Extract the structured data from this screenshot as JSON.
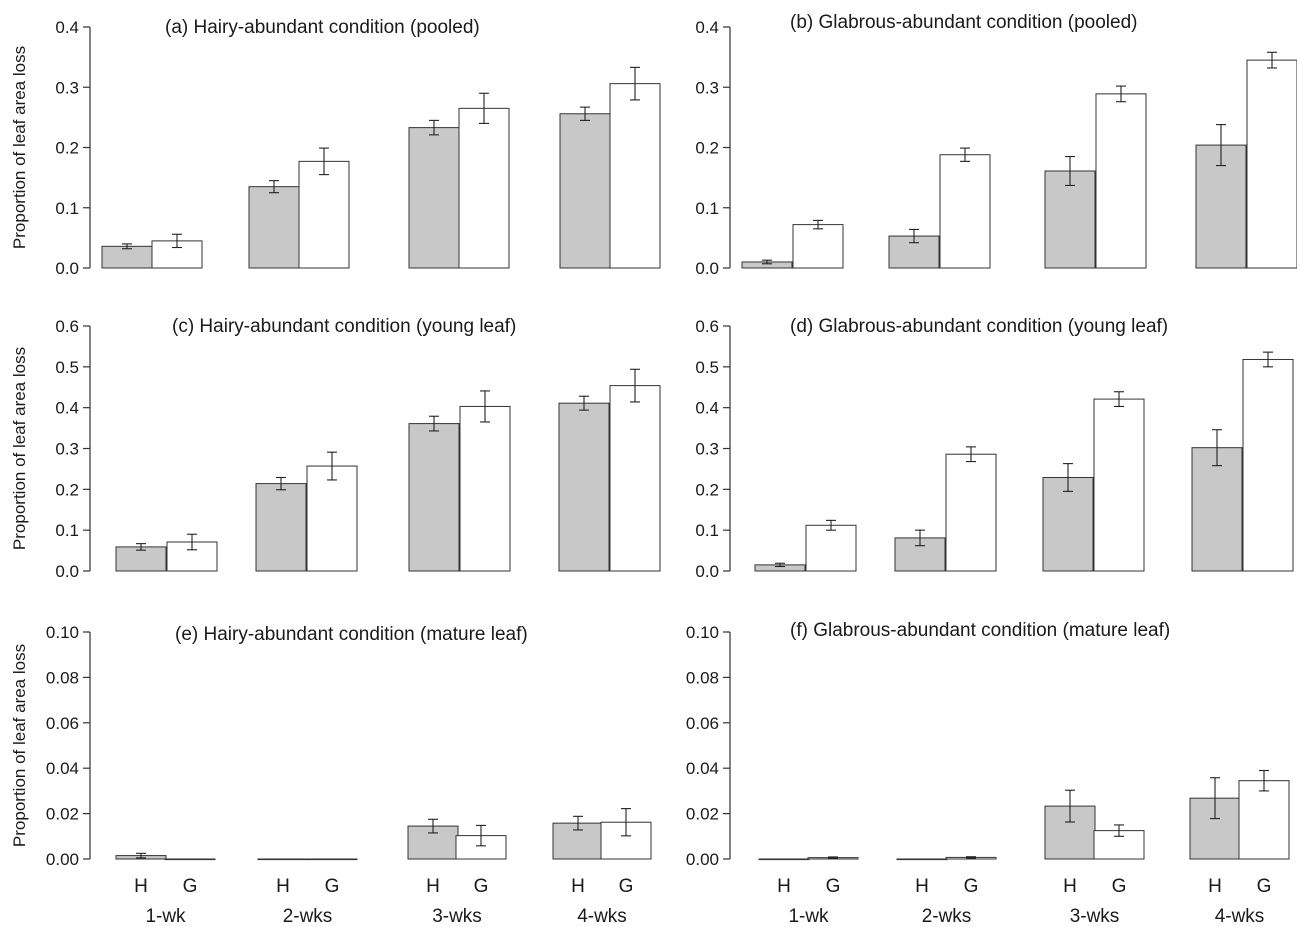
{
  "figure": {
    "ylabel": "Proportion of leaf area loss",
    "treatments": [
      "H",
      "G"
    ],
    "groups": [
      "1-wk",
      "2-wks",
      "3-wks",
      "4-wks"
    ],
    "colors": {
      "H": "#c8c8c8",
      "G": "#ffffff",
      "stroke": "#333333"
    }
  },
  "chart_data": [
    {
      "type": "bar",
      "title": "(a) Hairy-abundant condition (pooled)",
      "categories": [
        "1-wk",
        "2-wks",
        "3-wks",
        "4-wks"
      ],
      "series": [
        {
          "name": "H",
          "values": [
            0.036,
            0.135,
            0.233,
            0.256
          ],
          "errors": [
            0.004,
            0.01,
            0.012,
            0.011
          ]
        },
        {
          "name": "G",
          "values": [
            0.045,
            0.177,
            0.265,
            0.306
          ],
          "errors": [
            0.011,
            0.022,
            0.025,
            0.027
          ]
        }
      ],
      "ylim": [
        0,
        0.4
      ],
      "yticks": [
        "0.0",
        "0.1",
        "0.2",
        "0.3",
        "0.4"
      ]
    },
    {
      "type": "bar",
      "title": "(b) Glabrous-abundant condition (pooled)",
      "categories": [
        "1-wk",
        "2-wks",
        "3-wks",
        "4-wks"
      ],
      "series": [
        {
          "name": "H",
          "values": [
            0.01,
            0.053,
            0.161,
            0.204
          ],
          "errors": [
            0.003,
            0.011,
            0.024,
            0.034
          ]
        },
        {
          "name": "G",
          "values": [
            0.072,
            0.188,
            0.289,
            0.345
          ],
          "errors": [
            0.007,
            0.011,
            0.013,
            0.013
          ]
        }
      ],
      "ylim": [
        0,
        0.4
      ],
      "yticks": [
        "0.0",
        "0.1",
        "0.2",
        "0.3",
        "0.4"
      ]
    },
    {
      "type": "bar",
      "title": "(c) Hairy-abundant condition (young leaf)",
      "categories": [
        "1-wk",
        "2-wks",
        "3-wks",
        "4-wks"
      ],
      "series": [
        {
          "name": "H",
          "values": [
            0.059,
            0.214,
            0.361,
            0.411
          ],
          "errors": [
            0.008,
            0.015,
            0.018,
            0.017
          ]
        },
        {
          "name": "G",
          "values": [
            0.071,
            0.257,
            0.403,
            0.454
          ],
          "errors": [
            0.019,
            0.034,
            0.038,
            0.04
          ]
        }
      ],
      "ylim": [
        0,
        0.6
      ],
      "yticks": [
        "0.0",
        "0.1",
        "0.2",
        "0.3",
        "0.4",
        "0.5",
        "0.6"
      ]
    },
    {
      "type": "bar",
      "title": "(d) Glabrous-abundant condition (young leaf)",
      "categories": [
        "1-wk",
        "2-wks",
        "3-wks",
        "4-wks"
      ],
      "series": [
        {
          "name": "H",
          "values": [
            0.015,
            0.081,
            0.229,
            0.302
          ],
          "errors": [
            0.004,
            0.019,
            0.034,
            0.044
          ]
        },
        {
          "name": "G",
          "values": [
            0.112,
            0.286,
            0.421,
            0.518
          ],
          "errors": [
            0.012,
            0.018,
            0.018,
            0.018
          ]
        }
      ],
      "ylim": [
        0,
        0.6
      ],
      "yticks": [
        "0.0",
        "0.1",
        "0.2",
        "0.3",
        "0.4",
        "0.5",
        "0.6"
      ]
    },
    {
      "type": "bar",
      "title": "(e) Hairy-abundant condition (mature leaf)",
      "categories": [
        "1-wk",
        "2-wks",
        "3-wks",
        "4-wks"
      ],
      "series": [
        {
          "name": "H",
          "values": [
            0.0015,
            0.0,
            0.0145,
            0.0158
          ],
          "errors": [
            0.001,
            0.0,
            0.003,
            0.003
          ]
        },
        {
          "name": "G",
          "values": [
            0.0,
            0.0,
            0.0103,
            0.0162
          ],
          "errors": [
            0.0,
            0.0,
            0.0045,
            0.006
          ]
        }
      ],
      "ylim": [
        0,
        0.1
      ],
      "yticks": [
        "0.00",
        "0.02",
        "0.04",
        "0.06",
        "0.08",
        "0.10"
      ]
    },
    {
      "type": "bar",
      "title": "(f) Glabrous-abundant condition (mature leaf)",
      "categories": [
        "1-wk",
        "2-wks",
        "3-wks",
        "4-wks"
      ],
      "series": [
        {
          "name": "H",
          "values": [
            0.0,
            0.0,
            0.0233,
            0.0268
          ],
          "errors": [
            0.0,
            0.0,
            0.007,
            0.009
          ]
        },
        {
          "name": "G",
          "values": [
            0.0006,
            0.0007,
            0.0125,
            0.0345
          ],
          "errors": [
            0.0003,
            0.0003,
            0.0025,
            0.0045
          ]
        }
      ],
      "ylim": [
        0,
        0.1
      ],
      "yticks": [
        "0.00",
        "0.02",
        "0.04",
        "0.06",
        "0.08",
        "0.10"
      ]
    }
  ]
}
